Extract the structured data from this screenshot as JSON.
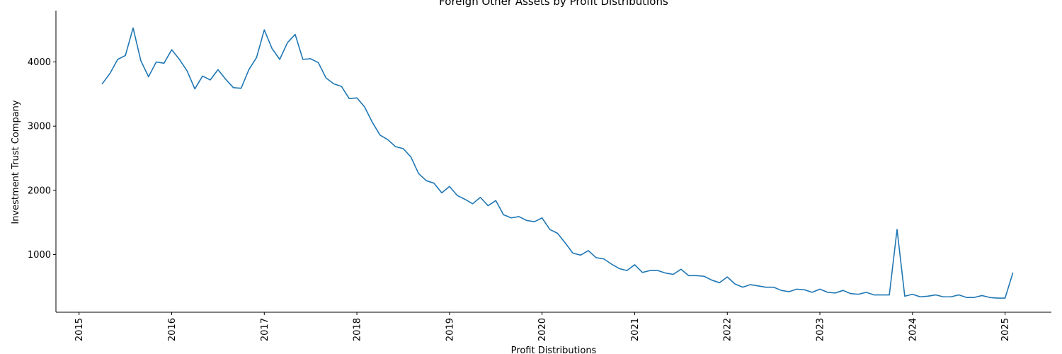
{
  "chart_data": {
    "type": "line",
    "title": "Foreign Other Assets by Profit Distributions",
    "xlabel": "Profit Distributions",
    "ylabel": "Investment Trust Company",
    "x_ticks": [
      "2015",
      "2016",
      "2017",
      "2018",
      "2019",
      "2020",
      "2021",
      "2022",
      "2023",
      "2024",
      "2025"
    ],
    "y_ticks": [
      1000,
      2000,
      3000,
      4000
    ],
    "xlim": [
      "2014-10",
      "2025-07"
    ],
    "ylim": [
      100,
      4800
    ],
    "grid": false,
    "line_color": "#1f77b4",
    "series": [
      {
        "x": [
          "2015-04",
          "2015-05",
          "2015-06",
          "2015-07",
          "2015-08",
          "2015-09",
          "2015-10",
          "2015-11",
          "2015-12",
          "2016-01",
          "2016-02",
          "2016-03",
          "2016-04",
          "2016-05",
          "2016-06",
          "2016-07",
          "2016-08",
          "2016-09",
          "2016-10",
          "2016-11",
          "2016-12",
          "2017-01",
          "2017-02",
          "2017-03",
          "2017-04",
          "2017-05",
          "2017-06",
          "2017-07",
          "2017-08",
          "2017-09",
          "2017-10",
          "2017-11",
          "2017-12",
          "2018-01",
          "2018-02",
          "2018-03",
          "2018-04",
          "2018-05",
          "2018-06",
          "2018-07",
          "2018-08",
          "2018-09",
          "2018-10",
          "2018-11",
          "2018-12",
          "2019-01",
          "2019-02",
          "2019-03",
          "2019-04",
          "2019-05",
          "2019-06",
          "2019-07",
          "2019-08",
          "2019-09",
          "2019-10",
          "2019-11",
          "2019-12",
          "2020-01",
          "2020-02",
          "2020-03",
          "2020-04",
          "2020-05",
          "2020-06",
          "2020-07",
          "2020-08",
          "2020-09",
          "2020-10",
          "2020-11",
          "2020-12",
          "2021-01",
          "2021-02",
          "2021-03",
          "2021-04",
          "2021-05",
          "2021-06",
          "2021-07",
          "2021-08",
          "2021-09",
          "2021-10",
          "2021-11",
          "2021-12",
          "2022-01",
          "2022-02",
          "2022-03",
          "2022-04",
          "2022-05",
          "2022-06",
          "2022-07",
          "2022-08",
          "2022-09",
          "2022-10",
          "2022-11",
          "2022-12",
          "2023-01",
          "2023-02",
          "2023-03",
          "2023-04",
          "2023-05",
          "2023-06",
          "2023-07",
          "2023-08",
          "2023-09",
          "2023-10",
          "2023-11",
          "2023-12",
          "2024-01",
          "2024-02",
          "2024-03",
          "2024-04",
          "2024-05",
          "2024-06",
          "2024-07",
          "2024-08",
          "2024-09",
          "2024-10",
          "2024-11",
          "2024-12",
          "2025-01",
          "2025-02"
        ],
        "y": [
          3660,
          3820,
          4040,
          4100,
          4530,
          4020,
          3770,
          4000,
          3980,
          4190,
          4040,
          3860,
          3580,
          3780,
          3720,
          3880,
          3730,
          3600,
          3590,
          3880,
          4070,
          4500,
          4210,
          4040,
          4300,
          4430,
          4040,
          4050,
          3990,
          3750,
          3660,
          3620,
          3430,
          3440,
          3300,
          3060,
          2860,
          2790,
          2680,
          2650,
          2520,
          2260,
          2150,
          2110,
          1960,
          2060,
          1920,
          1860,
          1790,
          1890,
          1760,
          1840,
          1620,
          1570,
          1590,
          1530,
          1510,
          1570,
          1390,
          1330,
          1180,
          1020,
          990,
          1060,
          950,
          930,
          850,
          780,
          750,
          840,
          720,
          750,
          750,
          710,
          690,
          770,
          670,
          670,
          660,
          600,
          560,
          650,
          540,
          490,
          530,
          510,
          490,
          490,
          440,
          420,
          460,
          450,
          410,
          460,
          410,
          400,
          440,
          390,
          380,
          410,
          370,
          370,
          370,
          1390,
          350,
          380,
          340,
          350,
          370,
          340,
          340,
          370,
          330,
          330,
          360,
          330,
          320,
          320,
          710
        ]
      }
    ]
  }
}
